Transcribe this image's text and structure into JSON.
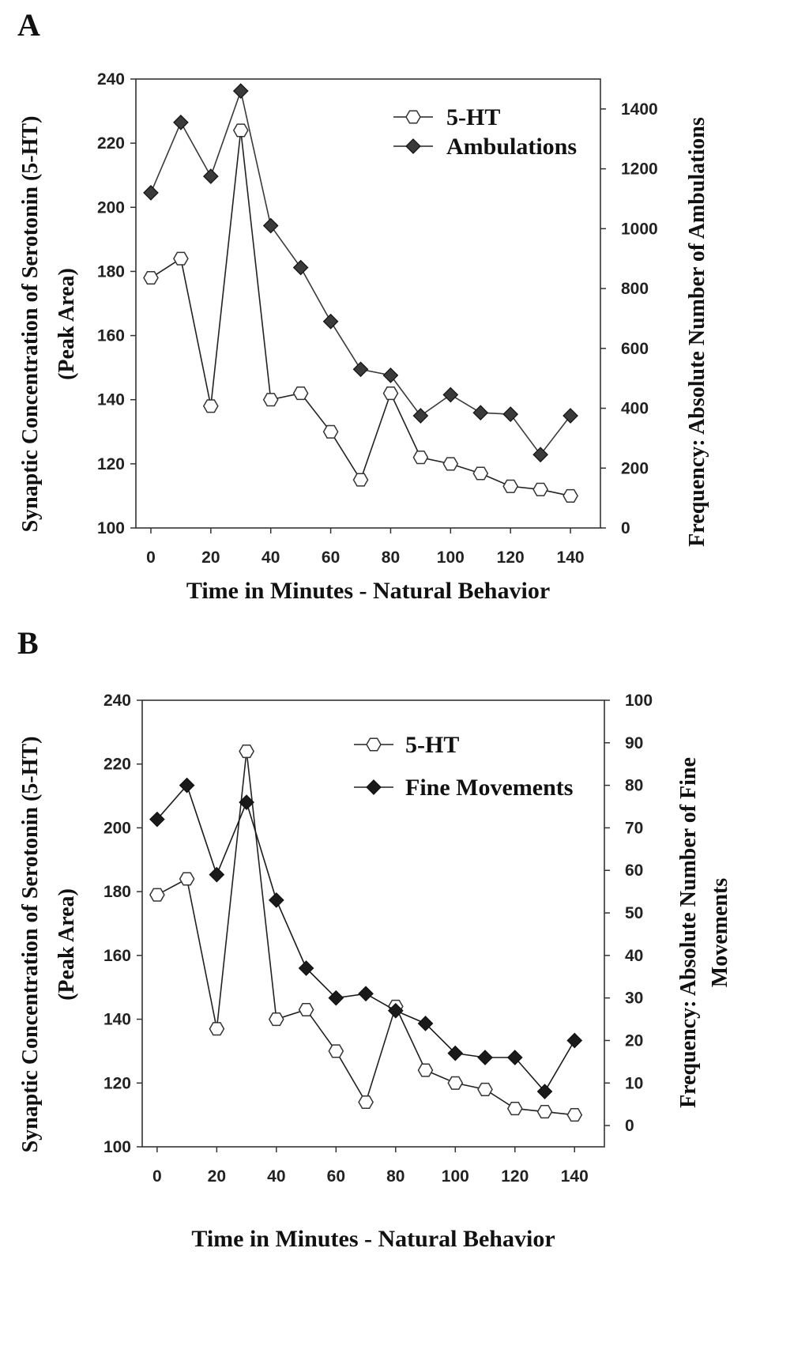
{
  "panels": [
    {
      "letter": "A",
      "xlabel": "Time in Minutes - Natural Behavior",
      "ylabel_left": [
        "Synaptic Concentration of Serotonin (5-HT)",
        "(Peak Area)"
      ],
      "ylabel_right": [
        "Frequency: Absolute Number of Ambulations"
      ],
      "legend": [
        "5-HT",
        "Ambulations"
      ]
    },
    {
      "letter": "B",
      "xlabel": "Time in Minutes - Natural Behavior",
      "ylabel_left": [
        "Synaptic Concentration of Serotonin (5-HT)",
        "(Peak Area)"
      ],
      "ylabel_right": [
        "Frequency: Absolute Number of Fine",
        "Movements"
      ],
      "legend": [
        "5-HT",
        "Fine Movements"
      ]
    }
  ],
  "chart_data": [
    {
      "type": "line",
      "panel": "A",
      "xlabel": "Time in Minutes - Natural Behavior",
      "ylabel": "Synaptic Concentration of Serotonin (5-HT) (Peak Area)",
      "y2label": "Frequency: Absolute Number of Ambulations",
      "x": [
        0,
        10,
        20,
        30,
        40,
        50,
        60,
        70,
        80,
        90,
        100,
        110,
        120,
        130,
        140
      ],
      "xlim": [
        -5,
        150
      ],
      "xticks": [
        0,
        20,
        40,
        60,
        80,
        100,
        120,
        140
      ],
      "ylim": [
        100,
        240
      ],
      "yticks": [
        100,
        120,
        140,
        160,
        180,
        200,
        220,
        240
      ],
      "y2lim": [
        0,
        1500
      ],
      "y2ticks": [
        0,
        200,
        400,
        600,
        800,
        1000,
        1200,
        1400
      ],
      "legend_position": "top-right",
      "grid": false,
      "series": [
        {
          "name": "5-HT",
          "axis": "left",
          "marker": "hexagon-open",
          "color": "#222222",
          "values": [
            178,
            184,
            138,
            224,
            140,
            142,
            130,
            115,
            142,
            122,
            120,
            117,
            113,
            112,
            110
          ]
        },
        {
          "name": "Ambulations",
          "axis": "right",
          "marker": "diamond-filled",
          "color": "#3a3a3a",
          "values": [
            1120,
            1355,
            1175,
            1460,
            1010,
            870,
            690,
            530,
            510,
            375,
            445,
            385,
            380,
            245,
            375
          ]
        }
      ]
    },
    {
      "type": "line",
      "panel": "B",
      "xlabel": "Time in Minutes - Natural Behavior",
      "ylabel": "Synaptic Concentration of Serotonin (5-HT) (Peak Area)",
      "y2label": "Frequency: Absolute Number of Fine Movements",
      "x": [
        0,
        10,
        20,
        30,
        40,
        50,
        60,
        70,
        80,
        90,
        100,
        110,
        120,
        130,
        140
      ],
      "xlim": [
        -5,
        150
      ],
      "xticks": [
        0,
        20,
        40,
        60,
        80,
        100,
        120,
        140
      ],
      "ylim": [
        100,
        240
      ],
      "yticks": [
        100,
        120,
        140,
        160,
        180,
        200,
        220,
        240
      ],
      "y2lim": [
        -5,
        100
      ],
      "y2ticks": [
        0,
        10,
        20,
        30,
        40,
        50,
        60,
        70,
        80,
        90,
        100
      ],
      "legend_position": "top-right",
      "grid": false,
      "series": [
        {
          "name": "5-HT",
          "axis": "left",
          "marker": "hexagon-open",
          "color": "#222222",
          "values": [
            179,
            184,
            137,
            224,
            140,
            143,
            130,
            114,
            144,
            124,
            120,
            118,
            112,
            111,
            110
          ]
        },
        {
          "name": "Fine Movements",
          "axis": "right",
          "marker": "diamond-filled",
          "color": "#1a1a1a",
          "values": [
            72,
            80,
            59,
            76,
            53,
            37,
            30,
            31,
            27,
            24,
            17,
            16,
            16,
            8,
            20
          ]
        }
      ]
    }
  ]
}
